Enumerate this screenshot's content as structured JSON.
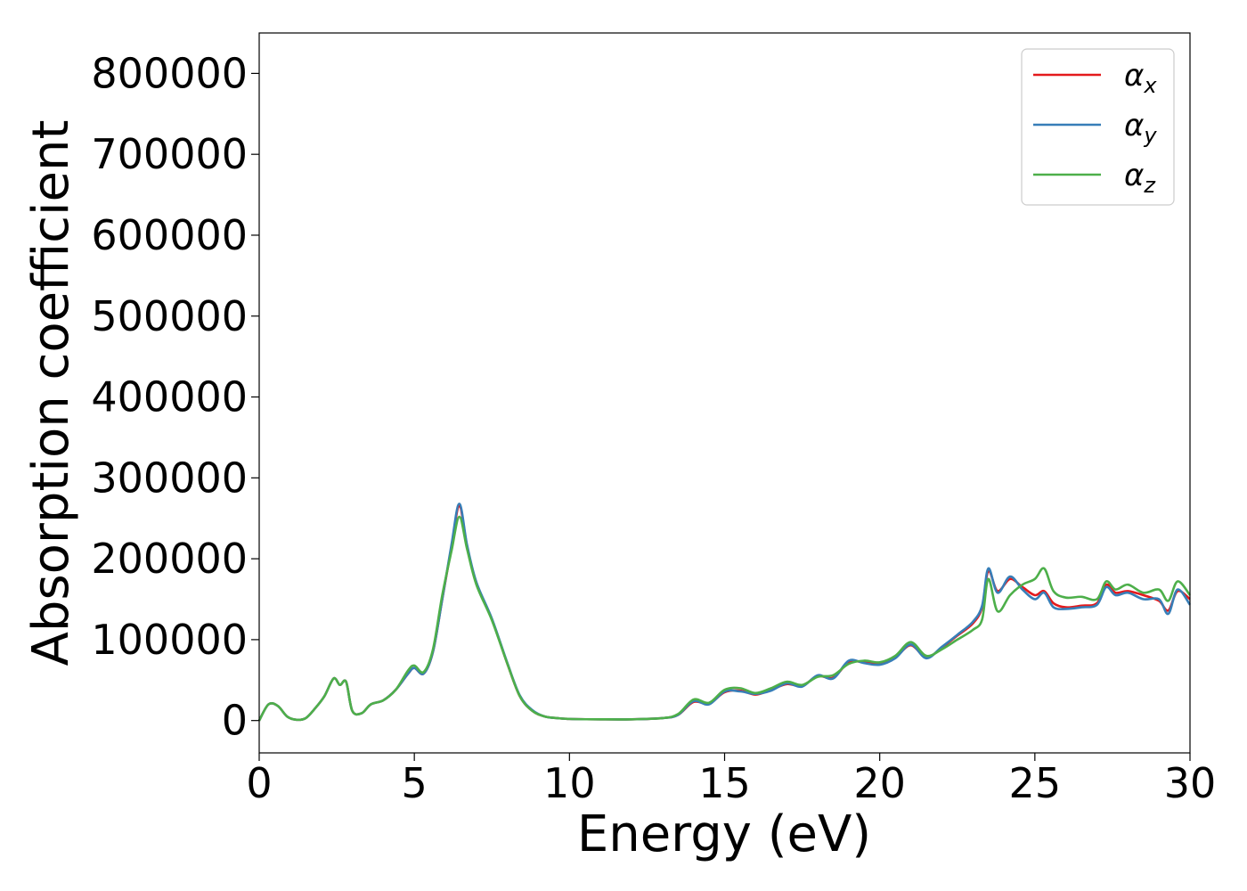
{
  "chart_data": {
    "type": "line",
    "title": "",
    "xlabel": "Energy (eV)",
    "ylabel": "Absorption coefficient",
    "xlim": [
      0,
      30
    ],
    "ylim": [
      -40000,
      850000
    ],
    "x_ticks": [
      0,
      5,
      10,
      15,
      20,
      25,
      30
    ],
    "y_ticks": [
      0,
      100000,
      200000,
      300000,
      400000,
      500000,
      600000,
      700000,
      800000
    ],
    "x_tick_labels": [
      "0",
      "5",
      "10",
      "15",
      "20",
      "25",
      "30"
    ],
    "y_tick_labels": [
      "0",
      "100000",
      "200000",
      "300000",
      "400000",
      "500000",
      "600000",
      "700000",
      "800000"
    ],
    "grid": false,
    "legend_position": "top-right",
    "series": [
      {
        "name": "αx",
        "symbol": "α",
        "subscript": "x",
        "color": "#e41a1c",
        "x": [
          0,
          0.3,
          0.6,
          0.9,
          1.2,
          1.5,
          1.8,
          2.1,
          2.4,
          2.6,
          2.8,
          3.0,
          3.3,
          3.6,
          4.0,
          4.4,
          4.8,
          5.0,
          5.3,
          5.6,
          5.9,
          6.2,
          6.45,
          6.7,
          7.0,
          7.5,
          8.0,
          8.4,
          8.8,
          9.2,
          9.6,
          10,
          11,
          12,
          13,
          13.5,
          14,
          14.5,
          15,
          15.5,
          16,
          16.5,
          17,
          17.5,
          18,
          18.5,
          19,
          19.5,
          20,
          20.5,
          21,
          21.5,
          22,
          22.5,
          23,
          23.3,
          23.5,
          23.8,
          24.2,
          24.6,
          25,
          25.3,
          25.6,
          26,
          26.5,
          27,
          27.3,
          27.6,
          28,
          28.5,
          29,
          29.3,
          29.6,
          30
        ],
        "y": [
          0,
          20000,
          18000,
          5000,
          1000,
          3000,
          15000,
          30000,
          52000,
          44000,
          48000,
          12000,
          9000,
          20000,
          25000,
          38000,
          58000,
          65000,
          58000,
          85000,
          150000,
          215000,
          265000,
          215000,
          170000,
          125000,
          70000,
          30000,
          12000,
          5000,
          3000,
          2000,
          1500,
          1500,
          3000,
          7000,
          23000,
          21000,
          35000,
          37000,
          32000,
          38000,
          45000,
          43000,
          55000,
          53000,
          72000,
          72000,
          70000,
          78000,
          93000,
          78000,
          90000,
          105000,
          120000,
          140000,
          185000,
          160000,
          175000,
          165000,
          155000,
          160000,
          145000,
          140000,
          142000,
          145000,
          168000,
          158000,
          160000,
          155000,
          148000,
          136000,
          160000,
          150000
        ]
      },
      {
        "name": "αy",
        "symbol": "α",
        "subscript": "y",
        "color": "#377eb8",
        "x": [
          0,
          0.3,
          0.6,
          0.9,
          1.2,
          1.5,
          1.8,
          2.1,
          2.4,
          2.6,
          2.8,
          3.0,
          3.3,
          3.6,
          4.0,
          4.4,
          4.8,
          5.0,
          5.3,
          5.6,
          5.9,
          6.2,
          6.45,
          6.7,
          7.0,
          7.5,
          8.0,
          8.4,
          8.8,
          9.2,
          9.6,
          10,
          11,
          12,
          13,
          13.5,
          14,
          14.5,
          15,
          15.5,
          16,
          16.5,
          17,
          17.5,
          18,
          18.5,
          19,
          19.5,
          20,
          20.5,
          21,
          21.5,
          22,
          22.5,
          23,
          23.3,
          23.5,
          23.8,
          24.2,
          24.6,
          25,
          25.3,
          25.6,
          26,
          26.5,
          27,
          27.3,
          27.6,
          28,
          28.5,
          29,
          29.3,
          29.6,
          30
        ],
        "y": [
          0,
          20000,
          18000,
          5000,
          1000,
          3000,
          15000,
          30000,
          52000,
          44000,
          48000,
          12000,
          9000,
          20000,
          25000,
          38000,
          58000,
          65000,
          58000,
          85000,
          150000,
          218000,
          268000,
          217000,
          171000,
          126000,
          71000,
          31000,
          13000,
          5000,
          3000,
          2000,
          1500,
          1500,
          3000,
          7000,
          24000,
          20000,
          36000,
          36000,
          33000,
          37000,
          46000,
          42000,
          56000,
          52000,
          74000,
          71000,
          69000,
          77000,
          94000,
          77000,
          91000,
          106000,
          122000,
          142000,
          188000,
          158000,
          178000,
          162000,
          150000,
          158000,
          140000,
          138000,
          140000,
          143000,
          165000,
          155000,
          158000,
          150000,
          150000,
          132000,
          162000,
          143000
        ]
      },
      {
        "name": "αz",
        "symbol": "α",
        "subscript": "z",
        "color": "#4daf4a",
        "x": [
          0,
          0.3,
          0.6,
          0.9,
          1.2,
          1.5,
          1.8,
          2.1,
          2.4,
          2.6,
          2.8,
          3.0,
          3.3,
          3.6,
          4.0,
          4.4,
          4.8,
          5.0,
          5.3,
          5.6,
          5.9,
          6.2,
          6.45,
          6.7,
          7.0,
          7.5,
          8.0,
          8.4,
          8.8,
          9.2,
          9.6,
          10,
          11,
          12,
          13,
          13.5,
          14,
          14.5,
          15,
          15.5,
          16,
          16.5,
          17,
          17.5,
          18,
          18.5,
          19,
          19.5,
          20,
          20.5,
          21,
          21.5,
          22,
          22.5,
          23,
          23.3,
          23.5,
          23.8,
          24.2,
          24.6,
          25,
          25.3,
          25.6,
          26,
          26.5,
          27,
          27.3,
          27.6,
          28,
          28.5,
          29,
          29.3,
          29.6,
          30
        ],
        "y": [
          0,
          20000,
          18000,
          5000,
          1000,
          3000,
          15000,
          30000,
          52000,
          44000,
          48000,
          12000,
          9000,
          20000,
          25000,
          38000,
          62000,
          68000,
          60000,
          88000,
          155000,
          210000,
          252000,
          212000,
          168000,
          124000,
          70000,
          30000,
          12000,
          5000,
          3000,
          2000,
          1500,
          1500,
          3000,
          8000,
          26000,
          22000,
          38000,
          40000,
          34000,
          40000,
          48000,
          44000,
          54000,
          56000,
          70000,
          74000,
          72000,
          80000,
          97000,
          80000,
          88000,
          100000,
          112000,
          125000,
          175000,
          135000,
          155000,
          168000,
          175000,
          188000,
          160000,
          152000,
          153000,
          150000,
          172000,
          162000,
          168000,
          158000,
          162000,
          148000,
          172000,
          155000
        ]
      }
    ]
  }
}
